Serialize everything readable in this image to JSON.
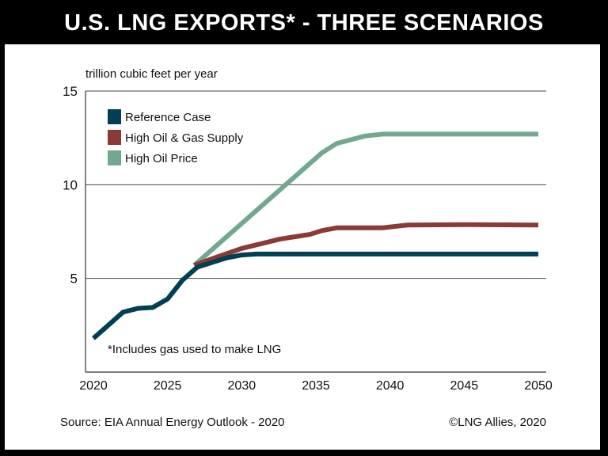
{
  "title": "U.S. LNG EXPORTS* - THREE SCENARIOS",
  "source": "Source: EIA Annual Energy Outlook - 2020",
  "credit": "©LNG Allies, 2020",
  "chart_data": {
    "type": "line",
    "title": "U.S. LNG EXPORTS* - THREE SCENARIOS",
    "ylabel": "trillion cubic feet per year",
    "xlabel": "",
    "note": "*Includes gas used to make LNG",
    "xlim": [
      2020,
      2050
    ],
    "ylim": [
      0,
      15
    ],
    "xticks": [
      "2020",
      "2025",
      "2030",
      "2035",
      "2040",
      "2045",
      "2050"
    ],
    "yticks": [
      "5",
      "10",
      "15"
    ],
    "grid": "horizontal",
    "legend_placement": "top-left",
    "series": [
      {
        "name": "Reference Case",
        "color": "#003f54",
        "points": [
          [
            2020,
            1.8
          ],
          [
            2021,
            2.5
          ],
          [
            2022,
            3.2
          ],
          [
            2023,
            3.4
          ],
          [
            2024,
            3.45
          ],
          [
            2025,
            3.9
          ],
          [
            2026,
            4.9
          ],
          [
            2027,
            5.6
          ],
          [
            2028,
            5.85
          ],
          [
            2029,
            6.1
          ],
          [
            2030,
            6.25
          ],
          [
            2031,
            6.3
          ],
          [
            2035,
            6.3
          ],
          [
            2040,
            6.3
          ],
          [
            2045,
            6.3
          ],
          [
            2050,
            6.3
          ]
        ]
      },
      {
        "name": "High Oil & Gas Supply",
        "color": "#8b3a35",
        "points": [
          [
            2026.8,
            5.7
          ],
          [
            2028,
            6.05
          ],
          [
            2030,
            6.6
          ],
          [
            2032.6,
            7.1
          ],
          [
            2034.6,
            7.35
          ],
          [
            2035.4,
            7.55
          ],
          [
            2036.4,
            7.7
          ],
          [
            2039.5,
            7.7
          ],
          [
            2041.2,
            7.85
          ],
          [
            2045,
            7.87
          ],
          [
            2050,
            7.85
          ]
        ]
      },
      {
        "name": "High Oil Price",
        "color": "#72a890",
        "points": [
          [
            2026.8,
            5.7
          ],
          [
            2035.4,
            11.7
          ],
          [
            2036.4,
            12.2
          ],
          [
            2038.3,
            12.6
          ],
          [
            2039.5,
            12.7
          ],
          [
            2045,
            12.7
          ],
          [
            2050,
            12.7
          ]
        ]
      }
    ]
  }
}
